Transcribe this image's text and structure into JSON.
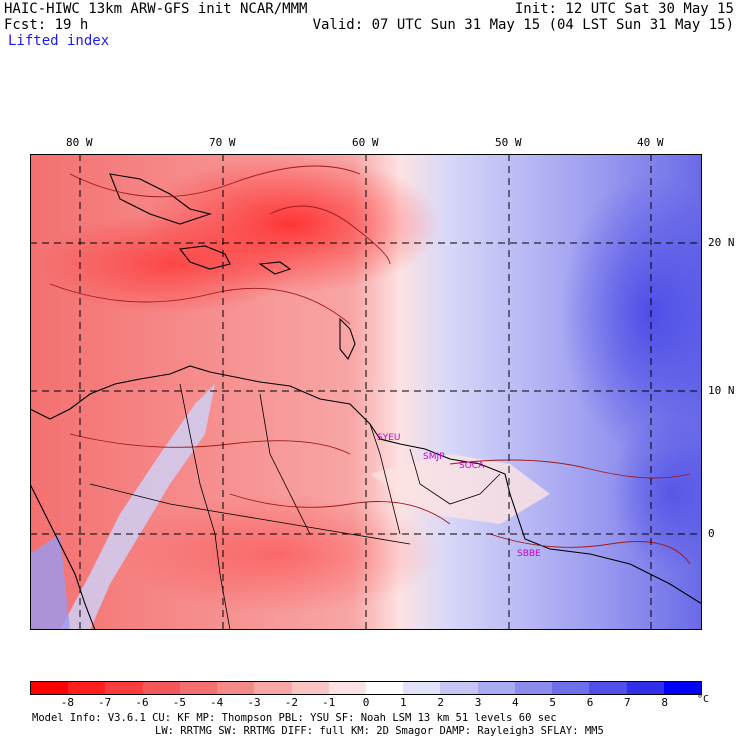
{
  "header": {
    "line1_left": "HAIC-HIWC 13km ARW-GFS init   NCAR/MMM",
    "line2_left": "Fcst:   19 h",
    "line3_left": "Lifted index",
    "line1_right": "Init: 12 UTC Sat 30 May 15",
    "line2_right": "Valid: 07 UTC Sun 31 May 15 (04 LST Sun 31 May 15)"
  },
  "map": {
    "lon_labels": [
      "80 W",
      "70 W",
      "60 W",
      "50 W",
      "40 W"
    ],
    "lat_labels": [
      "20 N",
      "10 N",
      "0"
    ],
    "stations": [
      "SYEU",
      "SMJP",
      "SOCA",
      "SBBE"
    ],
    "station_color": "#cc00cc",
    "negative_color": "#f24a4a",
    "positive_color": "#5a5aee"
  },
  "colorbar": {
    "labels": [
      "-8",
      "-7",
      "-6",
      "-5",
      "-4",
      "-3",
      "-2",
      "-1",
      "0",
      "1",
      "2",
      "3",
      "4",
      "5",
      "6",
      "7",
      "8"
    ],
    "unit": "°C",
    "colors": [
      "#ff0000",
      "#ff1f1f",
      "#ff3d3d",
      "#f55858",
      "#f47070",
      "#f58a8a",
      "#f8a6a6",
      "#fbc4c4",
      "#fde2e2",
      "#ffffff",
      "#e2e2fa",
      "#c6c6f6",
      "#aaaaf2",
      "#8c8cef",
      "#6f6feb",
      "#5050e8",
      "#3030ec",
      "#0000ff"
    ]
  },
  "footer": {
    "line1": "Model Info: V3.6.1    CU: KF       MP: Thompson     PBL: YSU        SF: Noah LSM     13 km    51 levels   60 sec",
    "line2": "LW: RRTMG    SW: RRTMG   DIFF: full    KM: 2D Smagor DAMP: Rayleigh3    SFLAY: MM5"
  }
}
